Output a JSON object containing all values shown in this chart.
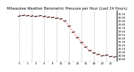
{
  "title": "Milwaukee Weather Barometric Pressure per Hour (Last 24 Hours)",
  "hours": [
    0,
    1,
    2,
    3,
    4,
    5,
    6,
    7,
    8,
    9,
    10,
    11,
    12,
    13,
    14,
    15,
    16,
    17,
    18,
    19,
    20,
    21,
    22,
    23
  ],
  "pressure": [
    30.04,
    30.06,
    30.05,
    30.04,
    30.03,
    30.05,
    30.03,
    30.01,
    30.0,
    29.98,
    29.96,
    29.9,
    29.75,
    29.58,
    29.42,
    29.28,
    29.15,
    29.05,
    28.98,
    28.94,
    28.9,
    28.92,
    28.88,
    28.87
  ],
  "line_color": "#ff0000",
  "marker_color": "#000000",
  "grid_color": "#aaaaaa",
  "bg_color": "#ffffff",
  "title_color": "#000000",
  "title_fontsize": 3.8,
  "tick_fontsize": 2.8,
  "ylim": [
    28.75,
    30.2
  ],
  "yticks": [
    28.8,
    28.9,
    29.0,
    29.1,
    29.2,
    29.3,
    29.4,
    29.5,
    29.6,
    29.7,
    29.8,
    29.9,
    30.0,
    30.1
  ],
  "ylabel_format": "%.2f",
  "grid_x_positions": [
    0,
    3,
    6,
    9,
    12,
    15,
    18,
    21
  ]
}
